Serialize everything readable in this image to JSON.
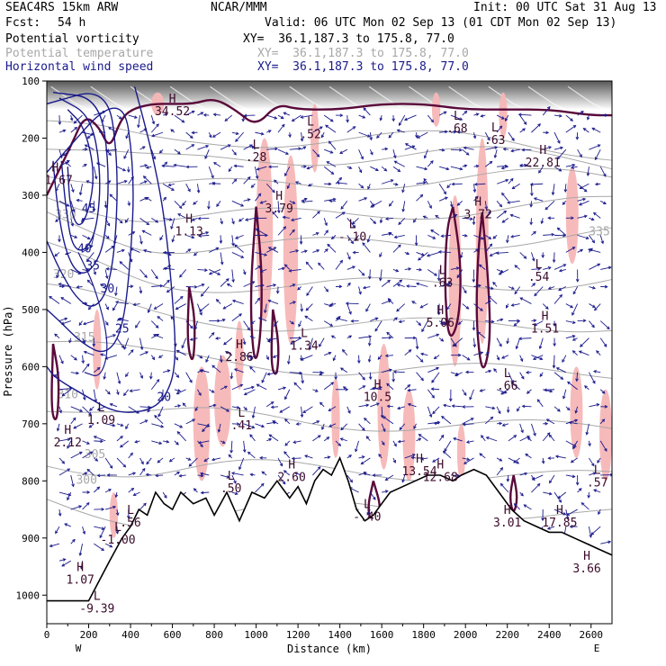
{
  "header": {
    "model": "SEAC4RS 15km ARW",
    "center": "NCAR/MMM",
    "init": "Init: 00 UTC Sat 31 Aug 13",
    "fcst_label": "Fcst:",
    "fcst_value": "54 h",
    "valid": "Valid: 06 UTC Mon 02 Sep 13 (01 CDT Mon 02 Sep 13)"
  },
  "fields": [
    {
      "name": "Potential vorticity",
      "xy": "XY=  36.1,187.3 to 175.8, 77.0",
      "color": "#000000"
    },
    {
      "name": "Potential temperature",
      "xy": "XY=  36.1,187.3 to 175.8, 77.0",
      "color": "#a8a8a8"
    },
    {
      "name": "Horizontal wind speed",
      "xy": "XY=  36.1,187.3 to 175.8, 77.0",
      "color": "#1a1a8c"
    }
  ],
  "chart_data": {
    "type": "line",
    "title": "",
    "xlabel": "Distance (km)",
    "ylabel": "Pressure (hPa)",
    "xlim": [
      0,
      2700
    ],
    "ylim": [
      1050,
      100
    ],
    "x_ticks": [
      0,
      200,
      400,
      600,
      800,
      1000,
      1200,
      1400,
      1600,
      1800,
      2000,
      2200,
      2400,
      2600
    ],
    "y_ticks": [
      100,
      200,
      300,
      400,
      500,
      600,
      700,
      800,
      900,
      1000
    ],
    "x_end_labels": {
      "left": "W",
      "right": "E"
    },
    "colors": {
      "pv": "#5a0a3a",
      "theta": "#a8a8a8",
      "wind": "#1a1a8c",
      "pink": "#f7b6b6"
    },
    "terrain": [
      [
        0,
        1010
      ],
      [
        200,
        1010
      ],
      [
        300,
        940
      ],
      [
        360,
        900
      ],
      [
        400,
        880
      ],
      [
        440,
        850
      ],
      [
        480,
        860
      ],
      [
        520,
        820
      ],
      [
        560,
        840
      ],
      [
        600,
        850
      ],
      [
        640,
        820
      ],
      [
        700,
        840
      ],
      [
        760,
        830
      ],
      [
        800,
        860
      ],
      [
        860,
        820
      ],
      [
        920,
        870
      ],
      [
        980,
        820
      ],
      [
        1040,
        830
      ],
      [
        1100,
        800
      ],
      [
        1160,
        830
      ],
      [
        1200,
        810
      ],
      [
        1240,
        840
      ],
      [
        1280,
        800
      ],
      [
        1320,
        780
      ],
      [
        1360,
        790
      ],
      [
        1400,
        760
      ],
      [
        1440,
        800
      ],
      [
        1480,
        850
      ],
      [
        1520,
        870
      ],
      [
        1560,
        860
      ],
      [
        1600,
        840
      ],
      [
        1640,
        820
      ],
      [
        1700,
        810
      ],
      [
        1760,
        800
      ],
      [
        1820,
        790
      ],
      [
        1880,
        790
      ],
      [
        1940,
        800
      ],
      [
        1980,
        790
      ],
      [
        2040,
        780
      ],
      [
        2100,
        790
      ],
      [
        2160,
        820
      ],
      [
        2220,
        850
      ],
      [
        2280,
        870
      ],
      [
        2340,
        880
      ],
      [
        2400,
        890
      ],
      [
        2460,
        890
      ],
      [
        2520,
        900
      ],
      [
        2580,
        910
      ],
      [
        2640,
        920
      ],
      [
        2700,
        930
      ]
    ],
    "wind_speed_contours": [
      {
        "label": "45",
        "points": [
          [
            100,
            150
          ],
          [
            180,
            180
          ],
          [
            230,
            260
          ],
          [
            200,
            330
          ],
          [
            150,
            360
          ],
          [
            110,
            320
          ],
          [
            100,
            250
          ]
        ]
      },
      {
        "label": "40",
        "points": [
          [
            60,
            130
          ],
          [
            210,
            160
          ],
          [
            260,
            260
          ],
          [
            240,
            360
          ],
          [
            180,
            400
          ],
          [
            120,
            390
          ],
          [
            90,
            320
          ],
          [
            70,
            240
          ]
        ]
      },
      {
        "label": "35",
        "points": [
          [
            30,
            120
          ],
          [
            250,
            130
          ],
          [
            300,
            250
          ],
          [
            280,
            380
          ],
          [
            220,
            430
          ],
          [
            150,
            440
          ],
          [
            90,
            400
          ],
          [
            50,
            320
          ],
          [
            30,
            240
          ]
        ]
      },
      {
        "label": "30",
        "points": [
          [
            0,
            140
          ],
          [
            290,
            110
          ],
          [
            340,
            240
          ],
          [
            330,
            380
          ],
          [
            290,
            470
          ],
          [
            220,
            500
          ],
          [
            140,
            480
          ],
          [
            60,
            430
          ],
          [
            0,
            380
          ]
        ]
      },
      {
        "label": "25",
        "points": [
          [
            0,
            260
          ],
          [
            360,
            110
          ],
          [
            420,
            260
          ],
          [
            400,
            420
          ],
          [
            360,
            540
          ],
          [
            280,
            580
          ],
          [
            170,
            560
          ],
          [
            60,
            520
          ],
          [
            0,
            500
          ]
        ]
      },
      {
        "label": "20",
        "points": [
          [
            420,
            110
          ],
          [
            500,
            220
          ],
          [
            560,
            330
          ],
          [
            600,
            470
          ],
          [
            620,
            600
          ],
          [
            560,
            660
          ],
          [
            460,
            680
          ],
          [
            320,
            680
          ],
          [
            180,
            650
          ],
          [
            40,
            620
          ],
          [
            0,
            600
          ]
        ]
      }
    ],
    "theta_labels": [
      "300",
      "305",
      "310",
      "315",
      "320",
      "330",
      "335"
    ],
    "extrema_labels": [
      {
        "type": "H",
        "value": "41.67",
        "x": 40,
        "y": 280
      },
      {
        "type": "H",
        "value": "34.52",
        "x": 600,
        "y": 160
      },
      {
        "type": "H",
        "value": "1.13",
        "x": 680,
        "y": 370
      },
      {
        "type": "L",
        "value": ".28",
        "x": 1000,
        "y": 240
      },
      {
        "type": "H",
        "value": "3.79",
        "x": 1110,
        "y": 330
      },
      {
        "type": "L",
        "value": "-.10",
        "x": 1460,
        "y": 380
      },
      {
        "type": "L",
        "value": ".52",
        "x": 1260,
        "y": 200
      },
      {
        "type": "L",
        "value": ".63",
        "x": 1890,
        "y": 460
      },
      {
        "type": "H",
        "value": "5.06",
        "x": 1880,
        "y": 530
      },
      {
        "type": "H",
        "value": "3.72",
        "x": 2060,
        "y": 340
      },
      {
        "type": "L",
        "value": ".68",
        "x": 1960,
        "y": 190
      },
      {
        "type": "L",
        "value": ".63",
        "x": 2140,
        "y": 210
      },
      {
        "type": "H",
        "value": "22.81",
        "x": 2370,
        "y": 250
      },
      {
        "type": "L",
        "value": ".54",
        "x": 2350,
        "y": 450
      },
      {
        "type": "H",
        "value": "1.51",
        "x": 2380,
        "y": 540
      },
      {
        "type": "L",
        "value": ".66",
        "x": 2200,
        "y": 640
      },
      {
        "type": "H",
        "value": "10.5",
        "x": 1580,
        "y": 660
      },
      {
        "type": "H",
        "value": "2.86",
        "x": 920,
        "y": 590
      },
      {
        "type": "L",
        "value": "1.34",
        "x": 1230,
        "y": 570
      },
      {
        "type": "L",
        "value": ".41",
        "x": 930,
        "y": 710
      },
      {
        "type": "L",
        "value": ".50",
        "x": 880,
        "y": 820
      },
      {
        "type": "H",
        "value": "2.60",
        "x": 1170,
        "y": 800
      },
      {
        "type": "H",
        "value": "13.54",
        "x": 1780,
        "y": 790
      },
      {
        "type": "H",
        "value": "12.68",
        "x": 1880,
        "y": 800
      },
      {
        "type": "L",
        "value": "-.40",
        "x": 1530,
        "y": 870
      },
      {
        "type": "H",
        "value": "3.01",
        "x": 2200,
        "y": 880
      },
      {
        "type": "H",
        "value": "17.85",
        "x": 2450,
        "y": 880
      },
      {
        "type": "H",
        "value": "3.66",
        "x": 2580,
        "y": 960
      },
      {
        "type": "L",
        "value": ".57",
        "x": 2630,
        "y": 810
      },
      {
        "type": "H",
        "value": "2.12",
        "x": 100,
        "y": 740
      },
      {
        "type": "L",
        "value": "1.09",
        "x": 260,
        "y": 700
      },
      {
        "type": "L",
        "value": ".56",
        "x": 400,
        "y": 880
      },
      {
        "type": "L",
        "value": "-1.00",
        "x": 340,
        "y": 910
      },
      {
        "type": "H",
        "value": "1.07",
        "x": 160,
        "y": 980
      },
      {
        "type": "L",
        "value": "-9.39",
        "x": 240,
        "y": 1030
      }
    ]
  }
}
